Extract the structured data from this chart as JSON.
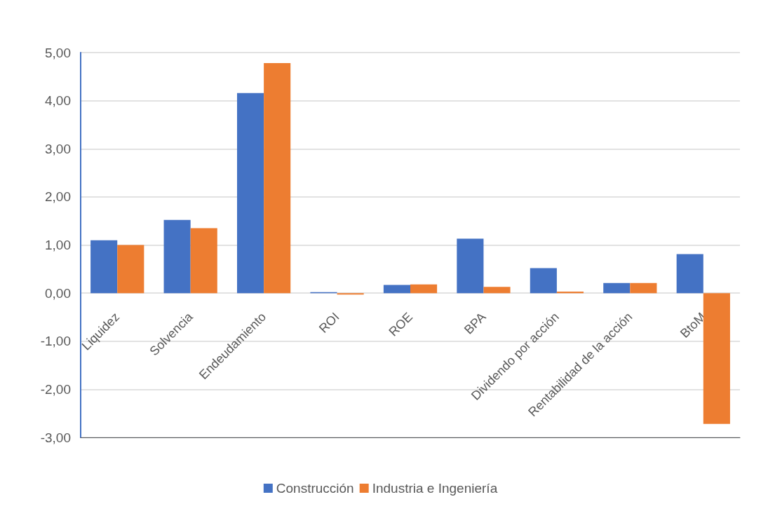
{
  "chart_data": {
    "type": "bar",
    "categories": [
      "Liquidez",
      "Solvencia",
      "Endeudamiento",
      "ROI",
      "ROE",
      "BPA",
      "Dividendo por acción",
      "Rentabilidad de la acción",
      "BtoM"
    ],
    "series": [
      {
        "name": "Construcción",
        "color": "#4472c4",
        "values": [
          1.1,
          1.52,
          4.16,
          0.02,
          0.17,
          1.13,
          0.52,
          0.21,
          0.81
        ]
      },
      {
        "name": "Industria e Ingeniería",
        "color": "#ed7d31",
        "values": [
          1.0,
          1.35,
          4.78,
          -0.03,
          0.18,
          0.13,
          0.03,
          0.21,
          -2.72
        ]
      }
    ],
    "ylim": [
      -3,
      5
    ],
    "yticks": [
      {
        "value": -3,
        "label": "-3,00"
      },
      {
        "value": -2,
        "label": "-2,00"
      },
      {
        "value": -1,
        "label": "-1,00"
      },
      {
        "value": 0,
        "label": "0,00"
      },
      {
        "value": 1,
        "label": "1,00"
      },
      {
        "value": 2,
        "label": "2,00"
      },
      {
        "value": 3,
        "label": "3,00"
      },
      {
        "value": 4,
        "label": "4,00"
      },
      {
        "value": 5,
        "label": "5,00"
      }
    ],
    "grid": "y",
    "legend": "bottom"
  }
}
